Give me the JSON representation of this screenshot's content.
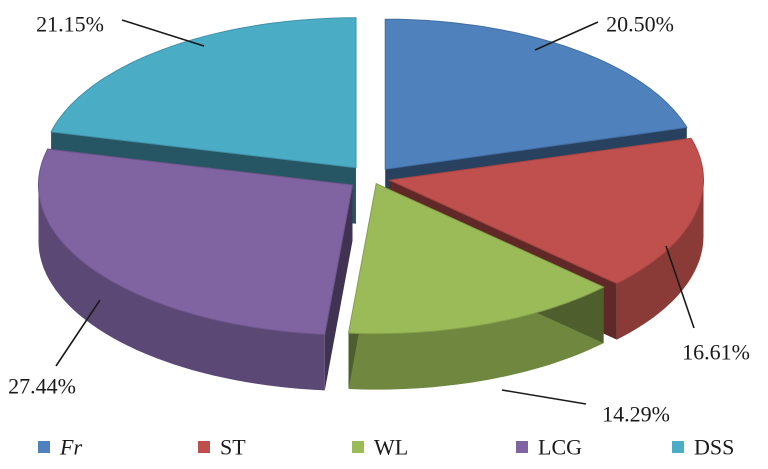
{
  "chart_data": {
    "type": "pie",
    "style": "3d-exploded",
    "categories": [
      "Fr",
      "ST",
      "WL",
      "LCG",
      "DSS"
    ],
    "values": [
      20.5,
      16.61,
      14.29,
      27.44,
      21.15
    ],
    "data_labels": [
      "20.50%",
      "16.61%",
      "14.29%",
      "27.44%",
      "21.15%"
    ],
    "colors": [
      "#4f81bd",
      "#c0504d",
      "#9bbb59",
      "#8064a2",
      "#4bacc6"
    ],
    "legend": {
      "placement": "bottom",
      "entries": [
        {
          "label": "Fr",
          "italic": true
        },
        {
          "label": "ST",
          "italic": false
        },
        {
          "label": "WL",
          "italic": false
        },
        {
          "label": "LCG",
          "italic": false
        },
        {
          "label": "DSS",
          "italic": false
        }
      ]
    },
    "title": "",
    "start_position": "top",
    "direction": "clockwise"
  }
}
